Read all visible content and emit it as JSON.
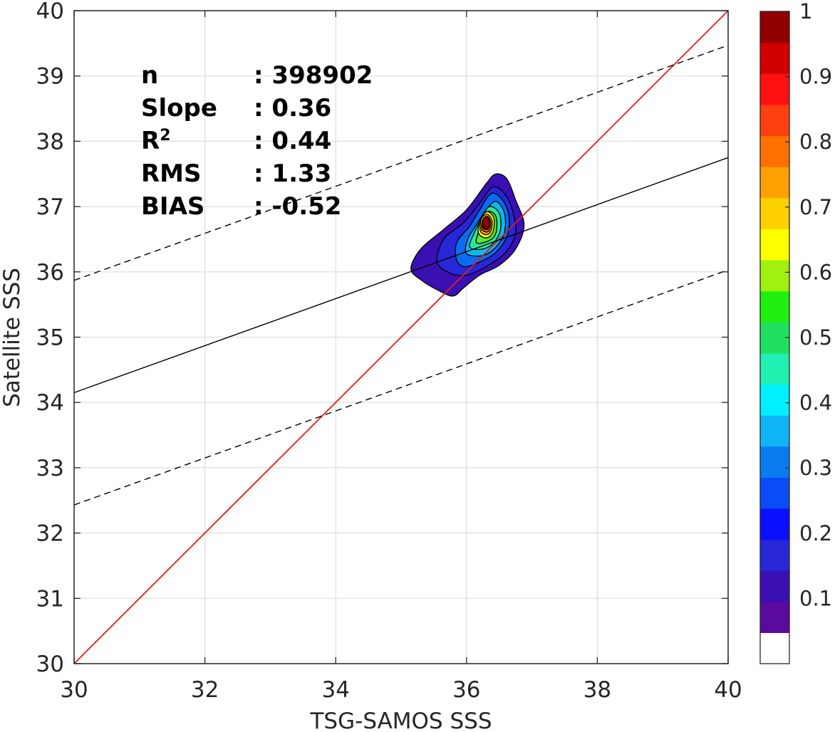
{
  "chart_data": {
    "type": "scatter",
    "subtype": "density-contour",
    "xlabel": "TSG-SAMOS SSS",
    "ylabel": "Satellite SSS",
    "xlim": [
      30,
      40
    ],
    "ylim": [
      30,
      40
    ],
    "xticks": [
      "30",
      "32",
      "34",
      "36",
      "38",
      "40"
    ],
    "yticks": [
      "30",
      "31",
      "32",
      "33",
      "34",
      "35",
      "36",
      "37",
      "38",
      "39",
      "40"
    ],
    "grid": true,
    "stats": [
      {
        "label": "n",
        "value": ": 398902"
      },
      {
        "label": "Slope",
        "value": ": 0.36"
      },
      {
        "label": "R",
        "sup": "2",
        "value": ": 0.44"
      },
      {
        "label": "RMS",
        "value": ": 1.33"
      },
      {
        "label": "BIAS",
        "value": ": -0.52"
      }
    ],
    "lines": [
      {
        "kind": "one-to-one",
        "color": "#e31a1c",
        "style": "solid",
        "x": [
          30,
          40
        ],
        "y": [
          30,
          40
        ]
      },
      {
        "kind": "fit",
        "color": "#000000",
        "style": "solid",
        "x": [
          30,
          40
        ],
        "y": [
          34.15,
          37.75
        ]
      },
      {
        "kind": "fit-upper",
        "color": "#000000",
        "style": "dashed",
        "x": [
          30,
          40
        ],
        "y": [
          35.87,
          39.47
        ]
      },
      {
        "kind": "fit-lower",
        "color": "#000000",
        "style": "dashed",
        "x": [
          30,
          40
        ],
        "y": [
          32.43,
          36.03
        ]
      }
    ],
    "density_peak": {
      "x": 36.3,
      "y": 36.75
    },
    "density_contours": [
      {
        "level": 0.05,
        "color": "#3a0fb4",
        "points": [
          [
            35.15,
            36.05
          ],
          [
            35.3,
            36.35
          ],
          [
            35.65,
            36.65
          ],
          [
            36.0,
            36.95
          ],
          [
            36.3,
            37.35
          ],
          [
            36.45,
            37.5
          ],
          [
            36.62,
            37.42
          ],
          [
            36.75,
            37.1
          ],
          [
            36.88,
            36.72
          ],
          [
            36.75,
            36.35
          ],
          [
            36.5,
            36.1
          ],
          [
            36.2,
            35.95
          ],
          [
            35.95,
            35.75
          ],
          [
            35.8,
            35.63
          ],
          [
            35.6,
            35.7
          ],
          [
            35.3,
            35.88
          ]
        ]
      },
      {
        "level": 0.1,
        "color": "#2727d8",
        "points": [
          [
            35.55,
            36.15
          ],
          [
            35.65,
            36.5
          ],
          [
            35.95,
            36.75
          ],
          [
            36.2,
            37.05
          ],
          [
            36.4,
            37.3
          ],
          [
            36.58,
            37.2
          ],
          [
            36.7,
            36.95
          ],
          [
            36.75,
            36.6
          ],
          [
            36.6,
            36.3
          ],
          [
            36.3,
            36.08
          ],
          [
            36.0,
            35.95
          ],
          [
            35.75,
            35.98
          ]
        ]
      },
      {
        "level": 0.2,
        "color": "#0a6cf0",
        "points": [
          [
            35.85,
            36.18
          ],
          [
            35.85,
            36.45
          ],
          [
            36.05,
            36.7
          ],
          [
            36.2,
            36.95
          ],
          [
            36.38,
            37.2
          ],
          [
            36.55,
            37.1
          ],
          [
            36.65,
            36.85
          ],
          [
            36.62,
            36.55
          ],
          [
            36.45,
            36.3
          ],
          [
            36.2,
            36.15
          ],
          [
            35.98,
            36.08
          ]
        ]
      },
      {
        "level": 0.3,
        "color": "#10b8f0",
        "points": [
          [
            36.0,
            36.28
          ],
          [
            36.02,
            36.5
          ],
          [
            36.15,
            36.72
          ],
          [
            36.3,
            36.95
          ],
          [
            36.45,
            37.08
          ],
          [
            36.58,
            36.9
          ],
          [
            36.58,
            36.6
          ],
          [
            36.45,
            36.38
          ],
          [
            36.25,
            36.25
          ]
        ]
      },
      {
        "level": 0.4,
        "color": "#28e8a0",
        "points": [
          [
            36.05,
            36.38
          ],
          [
            36.12,
            36.6
          ],
          [
            36.22,
            36.8
          ],
          [
            36.35,
            37.0
          ],
          [
            36.5,
            36.9
          ],
          [
            36.52,
            36.65
          ],
          [
            36.42,
            36.45
          ],
          [
            36.25,
            36.35
          ]
        ]
      },
      {
        "level": 0.5,
        "color": "#60e830",
        "points": [
          [
            36.15,
            36.45
          ],
          [
            36.22,
            36.7
          ],
          [
            36.32,
            36.92
          ],
          [
            36.45,
            36.85
          ],
          [
            36.45,
            36.6
          ],
          [
            36.35,
            36.48
          ]
        ]
      },
      {
        "level": 0.6,
        "color": "#f0f020",
        "points": [
          [
            36.18,
            36.6
          ],
          [
            36.22,
            36.82
          ],
          [
            36.32,
            36.92
          ],
          [
            36.42,
            36.82
          ],
          [
            36.4,
            36.6
          ],
          [
            36.3,
            36.52
          ]
        ]
      },
      {
        "level": 0.7,
        "color": "#ffb000",
        "points": [
          [
            36.21,
            36.63
          ],
          [
            36.23,
            36.82
          ],
          [
            36.32,
            36.88
          ],
          [
            36.39,
            36.78
          ],
          [
            36.37,
            36.62
          ],
          [
            36.3,
            36.57
          ]
        ]
      },
      {
        "level": 0.8,
        "color": "#ff5010",
        "points": [
          [
            36.23,
            36.66
          ],
          [
            36.25,
            36.8
          ],
          [
            36.32,
            36.85
          ],
          [
            36.37,
            36.76
          ],
          [
            36.35,
            36.64
          ],
          [
            36.3,
            36.61
          ]
        ]
      },
      {
        "level": 0.9,
        "color": "#c00000",
        "points": [
          [
            36.25,
            36.68
          ],
          [
            36.26,
            36.79
          ],
          [
            36.32,
            36.82
          ],
          [
            36.35,
            36.74
          ],
          [
            36.33,
            36.66
          ],
          [
            36.29,
            36.65
          ]
        ]
      }
    ],
    "colorbar": {
      "range": [
        0,
        1
      ],
      "ticks": [
        "0.1",
        "0.2",
        "0.3",
        "0.4",
        "0.5",
        "0.6",
        "0.7",
        "0.8",
        "0.9",
        "1"
      ],
      "colors": [
        "#ffffff",
        "#5a0a9e",
        "#3a0fb4",
        "#2727d8",
        "#0a10ff",
        "#0a4cf6",
        "#0a7cf0",
        "#10b4f6",
        "#00f0ff",
        "#20f0b0",
        "#20e060",
        "#20f010",
        "#a0f010",
        "#ffff00",
        "#ffd000",
        "#ffa000",
        "#ff7000",
        "#ff4010",
        "#ff1010",
        "#d00000",
        "#900000"
      ]
    }
  }
}
